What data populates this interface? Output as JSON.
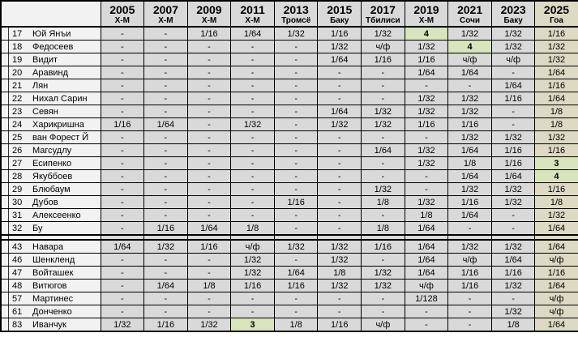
{
  "colors": {
    "grid_line": "#000000",
    "header_bg": "#d9d9d9",
    "result_cell_bg": "#d9d9d9",
    "name_column_bg": "#f2f2f2",
    "col_2025_bg": "#ddd9c3",
    "highlight_bg": "#d7e4bc"
  },
  "chart_data": {
    "type": "table",
    "columns": [
      {
        "year": "2005",
        "site": "Х-М"
      },
      {
        "year": "2007",
        "site": "Х-М"
      },
      {
        "year": "2009",
        "site": "Х-М"
      },
      {
        "year": "2011",
        "site": "Х-М"
      },
      {
        "year": "2013",
        "site": "Тромсё"
      },
      {
        "year": "2015",
        "site": "Баку"
      },
      {
        "year": "2017",
        "site": "Тбилиси"
      },
      {
        "year": "2019",
        "site": "Х-М"
      },
      {
        "year": "2021",
        "site": "Сочи"
      },
      {
        "year": "2023",
        "site": "Баку"
      },
      {
        "year": "2025",
        "site": "Гоа"
      }
    ],
    "groups": [
      {
        "rows": [
          {
            "num": "17",
            "name": "Юй Янъи",
            "results": [
              "-",
              "-",
              "1/16",
              "1/64",
              "1/32",
              "1/16",
              "1/32",
              "4",
              "1/32",
              "1/32",
              "1/16"
            ],
            "highlight": [
              7
            ]
          },
          {
            "num": "18",
            "name": "Федосеев",
            "results": [
              "-",
              "-",
              "-",
              "-",
              "-",
              "1/32",
              "ч/ф",
              "1/32",
              "4",
              "1/32",
              "1/32"
            ],
            "highlight": [
              8
            ]
          },
          {
            "num": "19",
            "name": "Видит",
            "results": [
              "-",
              "-",
              "-",
              "-",
              "-",
              "1/64",
              "1/16",
              "1/16",
              "ч/ф",
              "ч/ф",
              "1/32"
            ],
            "highlight": []
          },
          {
            "num": "20",
            "name": "Аравинд",
            "results": [
              "-",
              "-",
              "-",
              "-",
              "-",
              "-",
              "-",
              "1/64",
              "1/64",
              "-",
              "1/64"
            ],
            "highlight": []
          },
          {
            "num": "21",
            "name": "Лян",
            "results": [
              "-",
              "-",
              "-",
              "-",
              "-",
              "-",
              "-",
              "-",
              "-",
              "1/64",
              "1/16"
            ],
            "highlight": []
          },
          {
            "num": "22",
            "name": "Нихал Сарин",
            "results": [
              "-",
              "-",
              "-",
              "-",
              "-",
              "-",
              "-",
              "1/32",
              "1/32",
              "1/16",
              "1/64"
            ],
            "highlight": []
          },
          {
            "num": "23",
            "name": "Севян",
            "results": [
              "-",
              "-",
              "-",
              "-",
              "-",
              "1/64",
              "1/32",
              "1/32",
              "1/32",
              "-",
              "1/8"
            ],
            "highlight": []
          },
          {
            "num": "24",
            "name": "Харикришна",
            "results": [
              "1/16",
              "1/64",
              "-",
              "1/32",
              "-",
              "1/32",
              "1/32",
              "1/16",
              "1/16",
              "-",
              "1/8"
            ],
            "highlight": []
          },
          {
            "num": "25",
            "name": "ван Форест Й",
            "results": [
              "-",
              "-",
              "-",
              "-",
              "-",
              "-",
              "-",
              "-",
              "1/32",
              "1/32",
              "1/32"
            ],
            "highlight": []
          },
          {
            "num": "26",
            "name": "Магсудлу",
            "results": [
              "-",
              "-",
              "-",
              "-",
              "-",
              "-",
              "1/64",
              "1/32",
              "1/64",
              "1/16",
              "1/16"
            ],
            "highlight": []
          },
          {
            "num": "27",
            "name": "Есипенко",
            "results": [
              "-",
              "-",
              "-",
              "-",
              "-",
              "-",
              "-",
              "1/32",
              "1/8",
              "1/16",
              "3"
            ],
            "highlight": [
              10
            ]
          },
          {
            "num": "28",
            "name": "Якуббоев",
            "results": [
              "-",
              "-",
              "-",
              "-",
              "-",
              "-",
              "-",
              "-",
              "1/64",
              "1/64",
              "4"
            ],
            "highlight": [
              10
            ]
          },
          {
            "num": "29",
            "name": "Блюбаум",
            "results": [
              "-",
              "-",
              "-",
              "-",
              "-",
              "-",
              "1/32",
              "-",
              "1/32",
              "1/32",
              "1/16"
            ],
            "highlight": []
          },
          {
            "num": "30",
            "name": "Дубов",
            "results": [
              "-",
              "-",
              "-",
              "-",
              "1/16",
              "-",
              "1/8",
              "1/32",
              "1/16",
              "1/32",
              "1/8"
            ],
            "highlight": []
          },
          {
            "num": "31",
            "name": "Алексеенко",
            "results": [
              "-",
              "-",
              "-",
              "-",
              "-",
              "-",
              "-",
              "1/8",
              "1/64",
              "-",
              "1/32"
            ],
            "highlight": []
          },
          {
            "num": "32",
            "name": "Бу",
            "results": [
              "-",
              "1/16",
              "1/64",
              "1/8",
              "-",
              "-",
              "1/8",
              "1/64",
              "-",
              "-",
              "1/64"
            ],
            "highlight": []
          }
        ]
      },
      {
        "rows": [
          {
            "num": "43",
            "name": "Навара",
            "results": [
              "1/64",
              "1/32",
              "1/16",
              "ч/ф",
              "1/32",
              "1/32",
              "1/16",
              "1/64",
              "1/32",
              "1/32",
              "1/64"
            ],
            "highlight": []
          },
          {
            "num": "46",
            "name": "Шенкленд",
            "results": [
              "-",
              "-",
              "-",
              "1/32",
              "-",
              "1/32",
              "-",
              "1/64",
              "ч/ф",
              "1/64",
              "ч/ф"
            ],
            "highlight": []
          },
          {
            "num": "47",
            "name": "Войташек",
            "results": [
              "-",
              "-",
              "-",
              "1/32",
              "1/64",
              "1/8",
              "1/32",
              "1/64",
              "1/16",
              "1/16",
              "1/16"
            ],
            "highlight": []
          },
          {
            "num": "48",
            "name": "Витюгов",
            "results": [
              "-",
              "1/64",
              "1/8",
              "1/16",
              "1/16",
              "1/32",
              "1/32",
              "ч/ф",
              "1/16",
              "1/32",
              "1/64"
            ],
            "highlight": []
          },
          {
            "num": "57",
            "name": "Мартинес",
            "results": [
              "-",
              "-",
              "-",
              "-",
              "-",
              "-",
              "-",
              "1/128",
              "-",
              "-",
              "ч/ф"
            ],
            "highlight": []
          },
          {
            "num": "61",
            "name": "Донченко",
            "results": [
              "-",
              "-",
              "-",
              "-",
              "-",
              "-",
              "-",
              "-",
              "-",
              "1/32",
              "ч/ф"
            ],
            "highlight": []
          },
          {
            "num": "83",
            "name": "Иванчук",
            "results": [
              "1/32",
              "1/16",
              "1/32",
              "3",
              "1/8",
              "1/16",
              "ч/ф",
              "-",
              "-",
              "1/8",
              "1/64"
            ],
            "highlight": [
              3
            ]
          }
        ]
      }
    ]
  }
}
